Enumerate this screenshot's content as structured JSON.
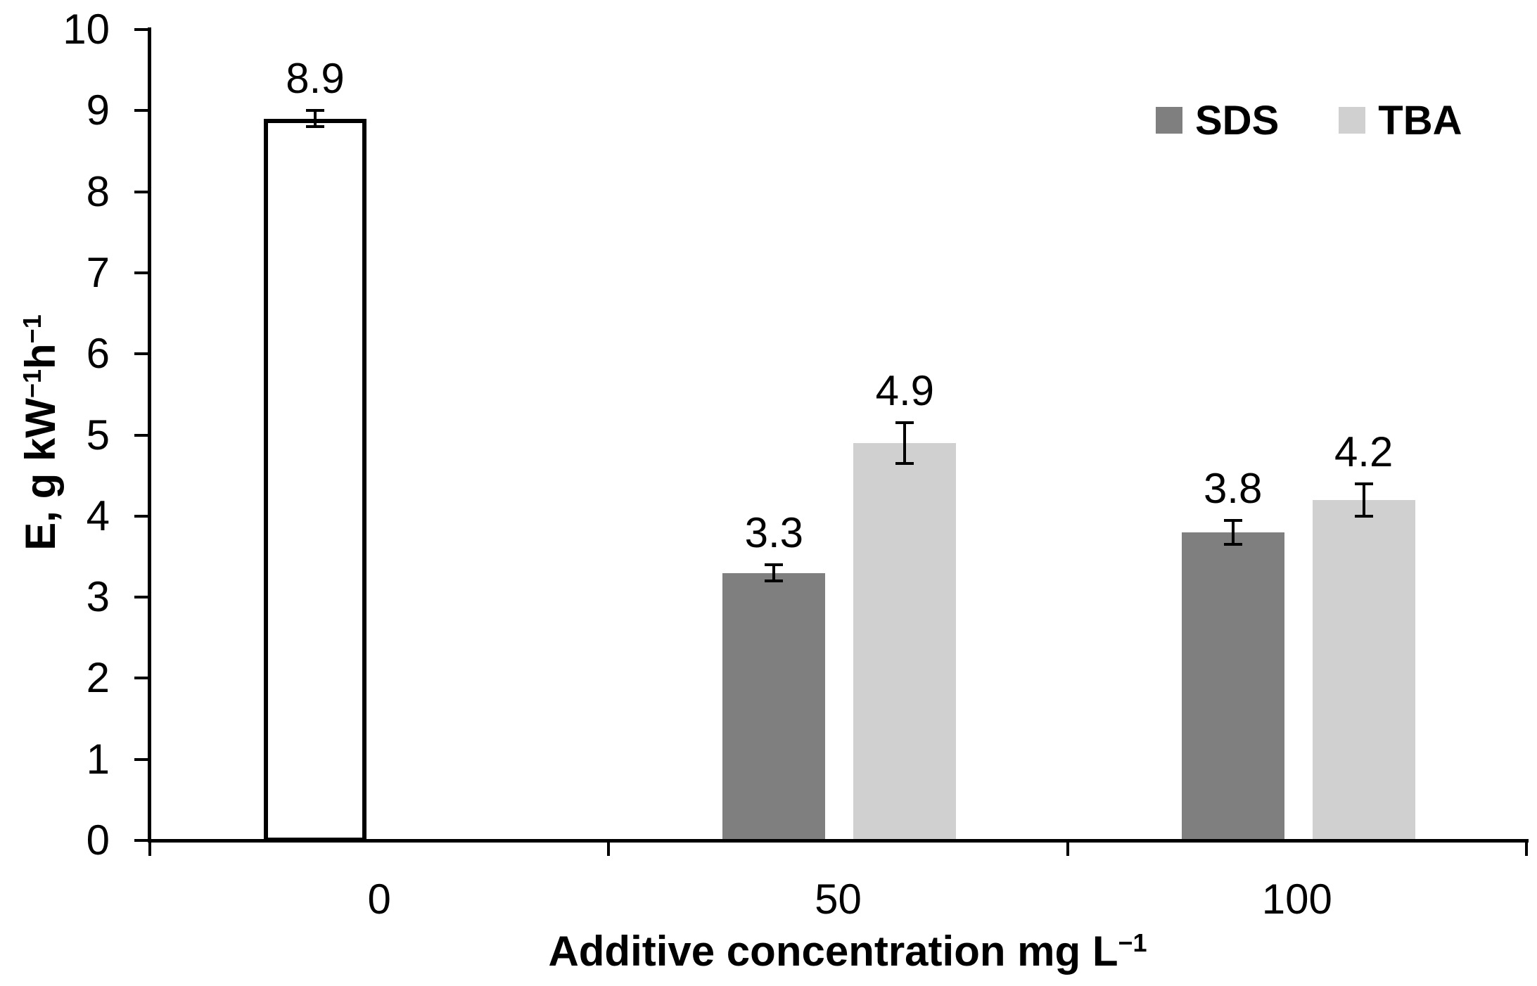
{
  "chart_data": {
    "type": "bar",
    "title": "",
    "xlabel": "Additive concentration mg L⁻¹",
    "ylabel": "E, g kW⁻¹h⁻¹",
    "ylim": [
      0,
      10
    ],
    "yticks": [
      0,
      1,
      2,
      3,
      4,
      5,
      6,
      7,
      8,
      9,
      10
    ],
    "categories": [
      "0",
      "50",
      "100"
    ],
    "grid": false,
    "legend_position": "top-right",
    "series": [
      {
        "name": "SDS",
        "color": "#7f7f7f",
        "values": [
          null,
          3.3,
          3.8
        ],
        "errors": [
          null,
          0.1,
          0.15
        ],
        "labels": [
          "",
          "3.3",
          "3.8"
        ]
      },
      {
        "name": "TBA",
        "color": "#d1d0d0",
        "values": [
          null,
          4.9,
          4.2
        ],
        "errors": [
          null,
          0.25,
          0.2
        ],
        "labels": [
          "",
          "4.9",
          "4.2"
        ]
      }
    ],
    "control_bar": {
      "category": "0",
      "value": 8.9,
      "error": 0.1,
      "label": "8.9",
      "fill": "#ffffff",
      "border_color": "#000000",
      "slot": "SDS"
    }
  },
  "colors": {
    "axis": "#000000",
    "text": "#000000",
    "error_bar": "#000000"
  }
}
